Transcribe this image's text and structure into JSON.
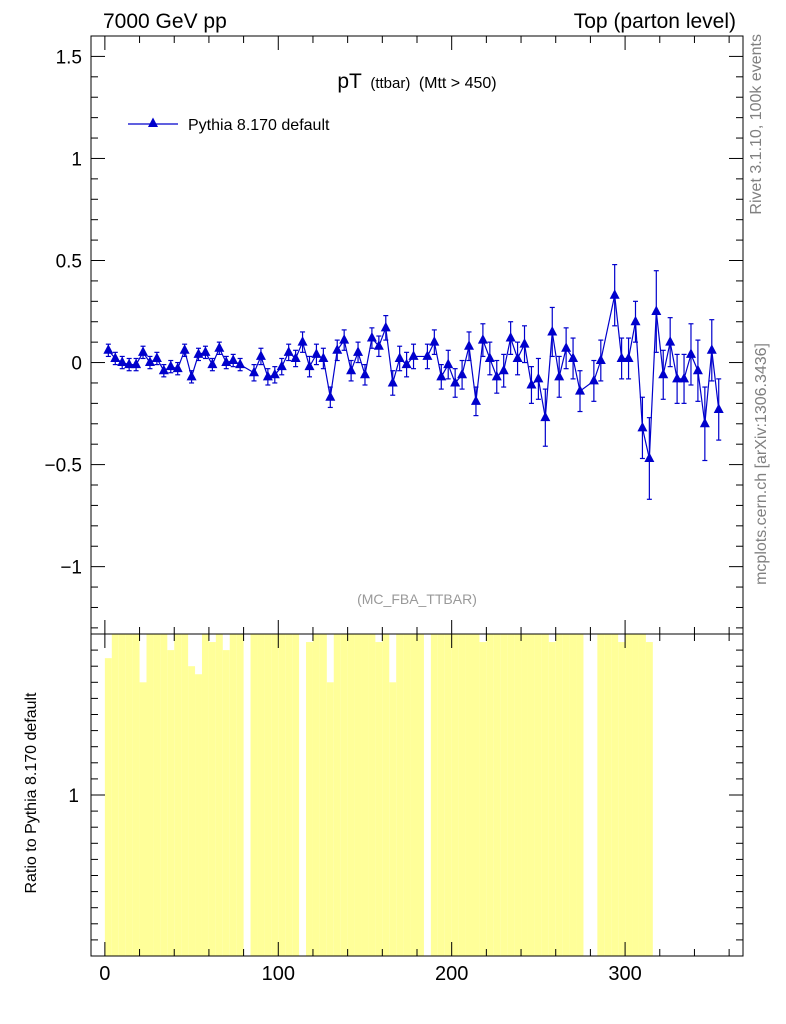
{
  "header": {
    "left": "7000 GeV pp",
    "right": "Top (parton level)"
  },
  "side_texts": {
    "rivet": "Rivet 3.1.10,  100k events",
    "mcplots": "mcplots.cern.ch [arXiv:1306.3436]"
  },
  "chart_data": [
    {
      "type": "line",
      "title_main": "pT",
      "title_sub1": "(ttbar)",
      "title_sub2": "(Mtt > 450)",
      "watermark": "(MC_FBA_TTBAR)",
      "xlim": [
        -8,
        368
      ],
      "ylim": [
        -1.33,
        1.6
      ],
      "yticks": [
        -1,
        -0.5,
        0,
        0.5,
        1,
        1.5
      ],
      "ytick_labels": [
        "−1",
        "−0.5",
        "0",
        "0.5",
        "1",
        "1.5"
      ],
      "colors": {
        "series": "#0000cc"
      },
      "legend": {
        "position": "top-left"
      },
      "series": [
        {
          "name": "Pythia 8.170 default",
          "marker": "triangle-up",
          "points": [
            [
              2,
              0.06,
              0.03
            ],
            [
              6,
              0.02,
              0.03
            ],
            [
              10,
              0.0,
              0.03
            ],
            [
              14,
              -0.01,
              0.03
            ],
            [
              18,
              -0.01,
              0.03
            ],
            [
              22,
              0.05,
              0.03
            ],
            [
              26,
              0.0,
              0.03
            ],
            [
              30,
              0.02,
              0.03
            ],
            [
              34,
              -0.04,
              0.03
            ],
            [
              38,
              -0.02,
              0.03
            ],
            [
              42,
              -0.03,
              0.03
            ],
            [
              46,
              0.06,
              0.03
            ],
            [
              50,
              -0.07,
              0.03
            ],
            [
              54,
              0.04,
              0.03
            ],
            [
              58,
              0.05,
              0.03
            ],
            [
              62,
              -0.01,
              0.03
            ],
            [
              66,
              0.07,
              0.03
            ],
            [
              70,
              0.0,
              0.03
            ],
            [
              74,
              0.01,
              0.03
            ],
            [
              78,
              -0.01,
              0.03
            ],
            [
              86,
              -0.05,
              0.04
            ],
            [
              90,
              0.03,
              0.04
            ],
            [
              94,
              -0.07,
              0.04
            ],
            [
              98,
              -0.06,
              0.04
            ],
            [
              102,
              -0.02,
              0.04
            ],
            [
              106,
              0.05,
              0.04
            ],
            [
              110,
              0.02,
              0.04
            ],
            [
              114,
              0.1,
              0.05
            ],
            [
              118,
              -0.02,
              0.05
            ],
            [
              122,
              0.04,
              0.05
            ],
            [
              126,
              0.02,
              0.05
            ],
            [
              130,
              -0.17,
              0.05
            ],
            [
              134,
              0.06,
              0.05
            ],
            [
              138,
              0.11,
              0.05
            ],
            [
              142,
              -0.04,
              0.05
            ],
            [
              146,
              0.05,
              0.05
            ],
            [
              150,
              -0.06,
              0.05
            ],
            [
              154,
              0.12,
              0.05
            ],
            [
              158,
              0.08,
              0.05
            ],
            [
              162,
              0.17,
              0.06
            ],
            [
              166,
              -0.1,
              0.06
            ],
            [
              170,
              0.02,
              0.06
            ],
            [
              174,
              -0.01,
              0.06
            ],
            [
              178,
              0.03,
              0.06
            ],
            [
              186,
              0.03,
              0.06
            ],
            [
              190,
              0.1,
              0.06
            ],
            [
              194,
              -0.07,
              0.06
            ],
            [
              198,
              -0.01,
              0.07
            ],
            [
              202,
              -0.1,
              0.07
            ],
            [
              206,
              -0.06,
              0.07
            ],
            [
              210,
              0.08,
              0.07
            ],
            [
              214,
              -0.19,
              0.07
            ],
            [
              218,
              0.11,
              0.08
            ],
            [
              222,
              0.02,
              0.08
            ],
            [
              226,
              -0.07,
              0.08
            ],
            [
              230,
              -0.04,
              0.08
            ],
            [
              234,
              0.12,
              0.08
            ],
            [
              238,
              0.02,
              0.08
            ],
            [
              242,
              0.09,
              0.09
            ],
            [
              246,
              -0.11,
              0.09
            ],
            [
              250,
              -0.08,
              0.1
            ],
            [
              254,
              -0.27,
              0.14
            ],
            [
              258,
              0.15,
              0.12
            ],
            [
              262,
              -0.07,
              0.1
            ],
            [
              266,
              0.07,
              0.1
            ],
            [
              270,
              0.02,
              0.1
            ],
            [
              274,
              -0.14,
              0.1
            ],
            [
              282,
              -0.09,
              0.1
            ],
            [
              286,
              0.01,
              0.1
            ],
            [
              294,
              0.33,
              0.15
            ],
            [
              298,
              0.02,
              0.1
            ],
            [
              302,
              0.02,
              0.1
            ],
            [
              306,
              0.2,
              0.1
            ],
            [
              310,
              -0.32,
              0.15
            ],
            [
              314,
              -0.47,
              0.2
            ],
            [
              318,
              0.25,
              0.2
            ],
            [
              322,
              -0.06,
              0.12
            ],
            [
              326,
              0.1,
              0.12
            ],
            [
              330,
              -0.08,
              0.12
            ],
            [
              334,
              -0.08,
              0.12
            ],
            [
              338,
              0.04,
              0.15
            ],
            [
              342,
              -0.04,
              0.15
            ],
            [
              346,
              -0.3,
              0.18
            ],
            [
              350,
              0.06,
              0.15
            ],
            [
              354,
              -0.23,
              0.15
            ]
          ]
        }
      ]
    },
    {
      "type": "bar",
      "ylabel": "Ratio to Pythia 8.170 default",
      "xlim": [
        -8,
        368
      ],
      "ylim": [
        0.8,
        1.2
      ],
      "yticks": [
        1
      ],
      "ytick_labels": [
        "1"
      ],
      "xticks": [
        0,
        100,
        200,
        300
      ],
      "xtick_labels": [
        "0",
        "100",
        "200",
        "300"
      ],
      "colors": {
        "band": "#ffff99"
      },
      "bin_width": 4,
      "band_bins": [
        [
          0,
          1.17
        ],
        [
          4,
          1.2
        ],
        [
          8,
          1.2
        ],
        [
          12,
          1.2
        ],
        [
          16,
          1.2
        ],
        [
          20,
          1.14
        ],
        [
          24,
          1.2
        ],
        [
          28,
          1.2
        ],
        [
          32,
          1.2
        ],
        [
          36,
          1.18
        ],
        [
          40,
          1.2
        ],
        [
          44,
          1.2
        ],
        [
          48,
          1.16
        ],
        [
          52,
          1.15
        ],
        [
          56,
          1.2
        ],
        [
          60,
          1.19
        ],
        [
          64,
          1.2
        ],
        [
          68,
          1.18
        ],
        [
          72,
          1.2
        ],
        [
          76,
          1.2
        ],
        [
          84,
          1.2
        ],
        [
          88,
          1.2
        ],
        [
          92,
          1.2
        ],
        [
          96,
          1.2
        ],
        [
          100,
          1.2
        ],
        [
          104,
          1.2
        ],
        [
          108,
          1.2
        ],
        [
          116,
          1.19
        ],
        [
          120,
          1.2
        ],
        [
          124,
          1.2
        ],
        [
          128,
          1.14
        ],
        [
          132,
          1.2
        ],
        [
          136,
          1.2
        ],
        [
          140,
          1.2
        ],
        [
          144,
          1.2
        ],
        [
          148,
          1.2
        ],
        [
          152,
          1.2
        ],
        [
          156,
          1.19
        ],
        [
          160,
          1.2
        ],
        [
          164,
          1.14
        ],
        [
          168,
          1.2
        ],
        [
          172,
          1.2
        ],
        [
          176,
          1.2
        ],
        [
          180,
          1.2
        ],
        [
          188,
          1.2
        ],
        [
          192,
          1.2
        ],
        [
          196,
          1.2
        ],
        [
          200,
          1.2
        ],
        [
          204,
          1.2
        ],
        [
          208,
          1.2
        ],
        [
          212,
          1.2
        ],
        [
          216,
          1.19
        ],
        [
          220,
          1.2
        ],
        [
          224,
          1.2
        ],
        [
          228,
          1.2
        ],
        [
          232,
          1.2
        ],
        [
          236,
          1.2
        ],
        [
          240,
          1.2
        ],
        [
          244,
          1.2
        ],
        [
          248,
          1.2
        ],
        [
          252,
          1.2
        ],
        [
          256,
          1.19
        ],
        [
          260,
          1.2
        ],
        [
          264,
          1.2
        ],
        [
          268,
          1.2
        ],
        [
          272,
          1.2
        ],
        [
          284,
          1.2
        ],
        [
          288,
          1.2
        ],
        [
          292,
          1.2
        ],
        [
          296,
          1.19
        ],
        [
          300,
          1.2
        ],
        [
          304,
          1.2
        ],
        [
          308,
          1.2
        ],
        [
          312,
          1.19
        ]
      ]
    }
  ]
}
